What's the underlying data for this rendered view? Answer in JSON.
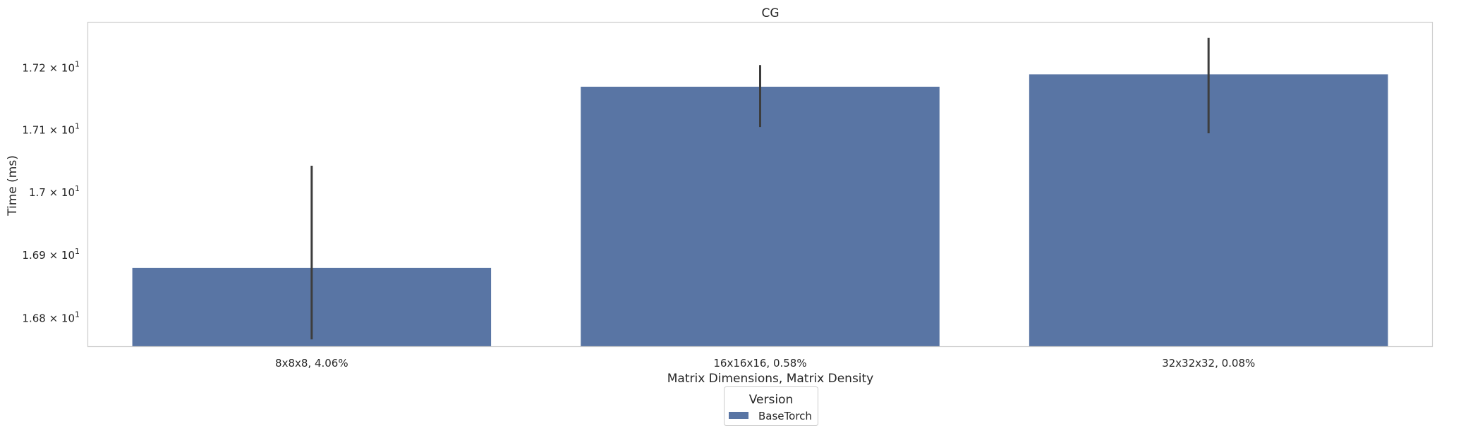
{
  "chart_data": {
    "type": "bar",
    "title": "CG",
    "xlabel": "Matrix Dimensions, Matrix Density",
    "ylabel": "Time (ms)",
    "yscale": "log",
    "ylim": [
      16.755,
      17.275
    ],
    "grid": false,
    "categories": [
      "8x8x8, 4.06%",
      "16x16x16, 0.58%",
      "32x32x32, 0.08%"
    ],
    "series": [
      {
        "name": "BaseTorch",
        "color": "#5975a4",
        "values": [
          16.88,
          17.17,
          17.19
        ],
        "error_low": [
          16.767,
          17.105,
          17.095
        ],
        "error_high": [
          17.043,
          17.205,
          17.249
        ]
      }
    ],
    "yticks": [
      {
        "value": 16.8,
        "mantissa": "1.68",
        "base": "10",
        "exp": "1"
      },
      {
        "value": 16.9,
        "mantissa": "1.69",
        "base": "10",
        "exp": "1"
      },
      {
        "value": 17.0,
        "mantissa": "1.7",
        "base": "10",
        "exp": "1"
      },
      {
        "value": 17.1,
        "mantissa": "1.71",
        "base": "10",
        "exp": "1"
      },
      {
        "value": 17.2,
        "mantissa": "1.72",
        "base": "10",
        "exp": "1"
      }
    ],
    "legend": {
      "title": "Version",
      "placement": "below-center",
      "entries": [
        "BaseTorch"
      ]
    }
  }
}
